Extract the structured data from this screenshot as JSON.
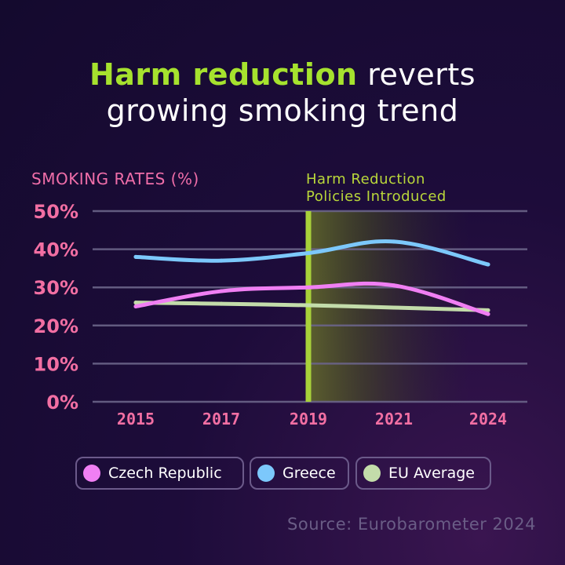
{
  "title": {
    "highlight": "Harm reduction",
    "rest_line1": " reverts",
    "line2": "growing smoking trend"
  },
  "y_axis_title": "SMOKING RATES (%)",
  "annotation": {
    "line1": "Harm Reduction",
    "line2": "Policies Introduced"
  },
  "source": "Source: Eurobarometer 2024",
  "colors": {
    "highlight": "#a6e22e",
    "tick": "#f26fa3",
    "czech": "#f07ff3",
    "greece": "#7cc8fb",
    "eu": "#c3dcaa",
    "policy_line": "#a8d13a"
  },
  "chart_data": {
    "type": "line",
    "title": "Harm reduction reverts growing smoking trend",
    "xlabel": "",
    "ylabel": "SMOKING RATES (%)",
    "categories": [
      "2015",
      "2017",
      "2019",
      "2021",
      "2024"
    ],
    "x": [
      2015,
      2017,
      2019,
      2021,
      2024
    ],
    "ylim": [
      0,
      50
    ],
    "yticks": [
      {
        "value": 0,
        "label": "0%"
      },
      {
        "value": 10,
        "label": "10%"
      },
      {
        "value": 20,
        "label": "20%"
      },
      {
        "value": 30,
        "label": "30%"
      },
      {
        "value": 40,
        "label": "40%"
      },
      {
        "value": 50,
        "label": "50%"
      }
    ],
    "grid": true,
    "annotation": {
      "x": 2019,
      "label": "Harm Reduction Policies Introduced"
    },
    "series": [
      {
        "name": "Czech Republic",
        "color": "#f07ff3",
        "values": [
          25,
          29,
          30,
          30.5,
          23
        ]
      },
      {
        "name": "Greece",
        "color": "#7cc8fb",
        "values": [
          38,
          37,
          39,
          42,
          36
        ]
      },
      {
        "name": "EU Average",
        "color": "#c3dcaa",
        "values": [
          26,
          25.7,
          25.3,
          24.7,
          24
        ]
      }
    ]
  }
}
